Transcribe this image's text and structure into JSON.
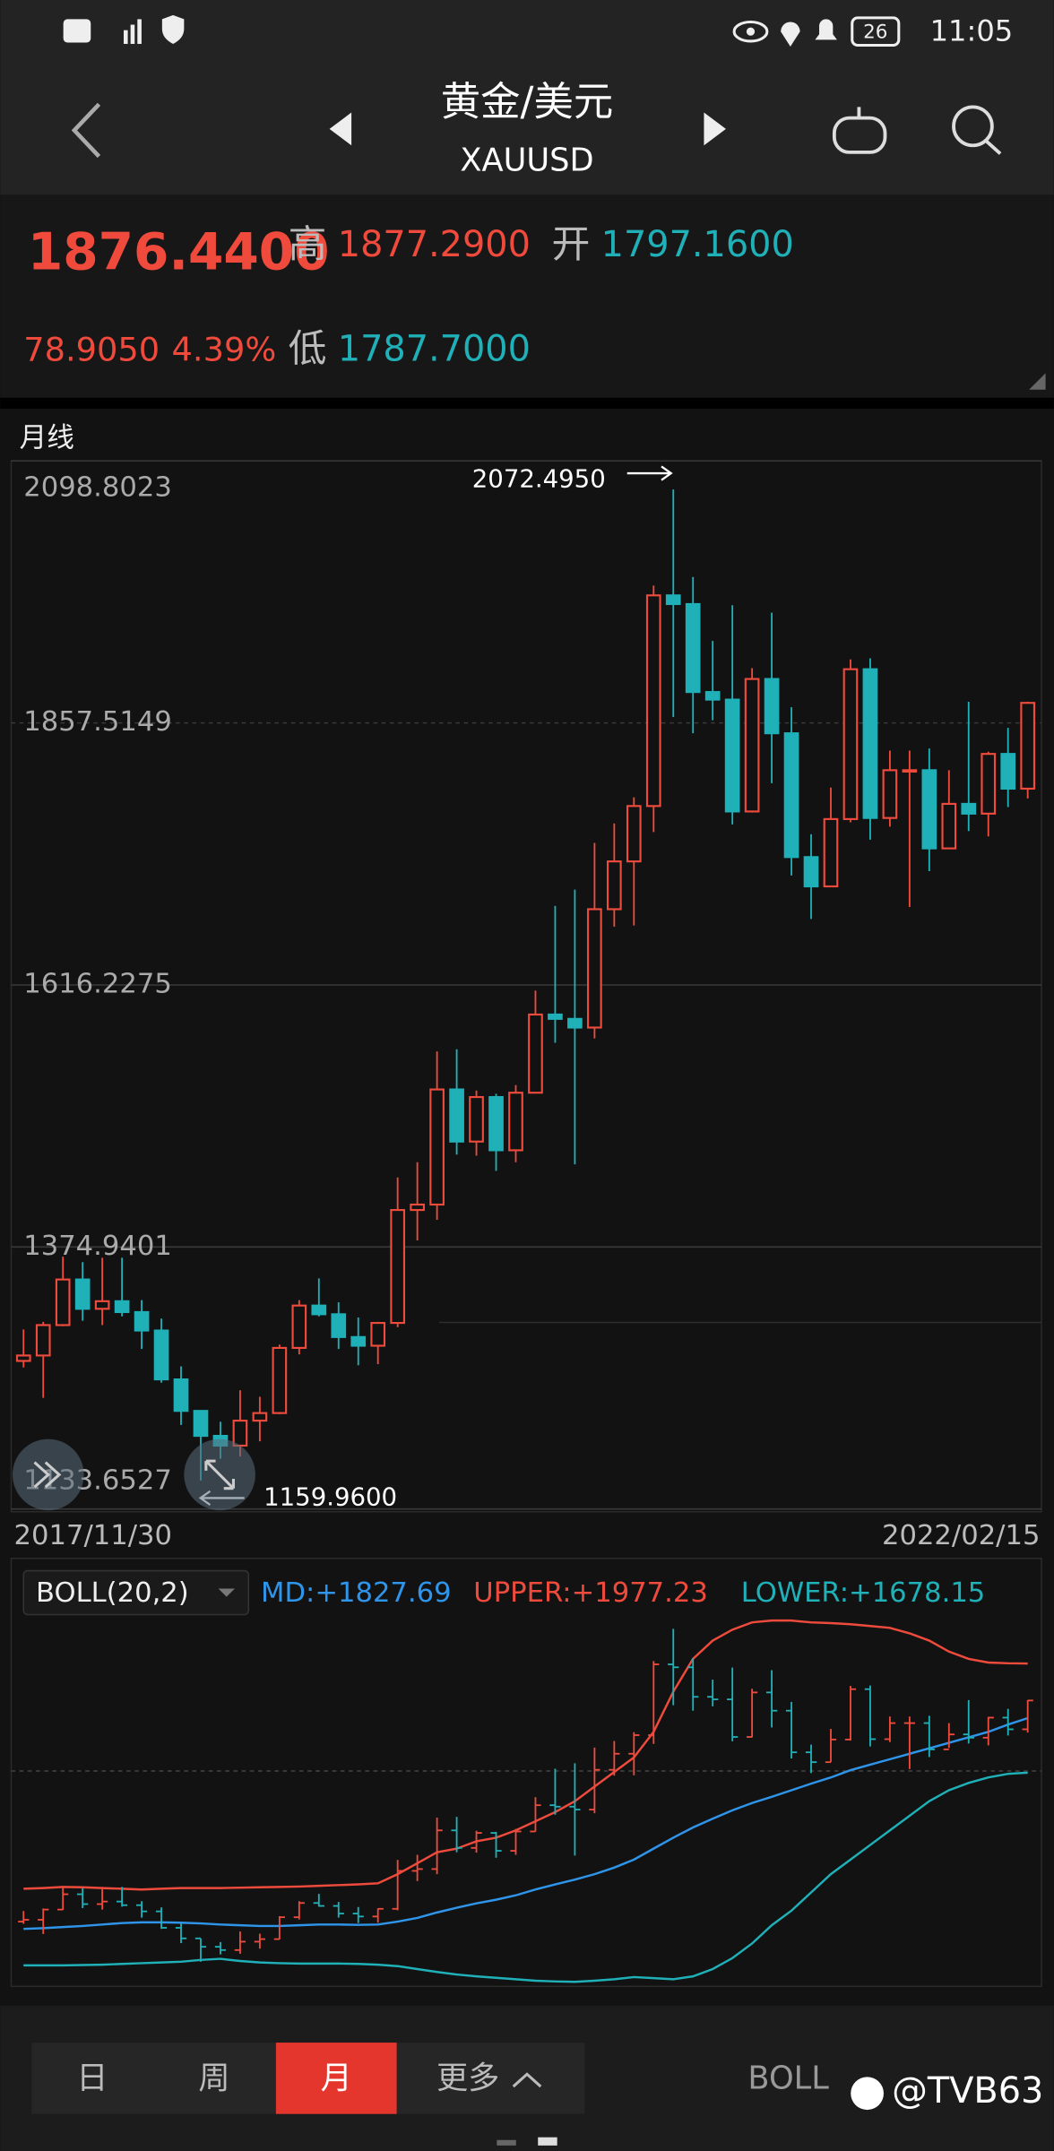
{
  "status_bar": {
    "battery": "26",
    "time": "11:05"
  },
  "header": {
    "title": "黄金/美元",
    "symbol": "XAUUSD"
  },
  "quote": {
    "price": "1876.4400",
    "high_label": "高",
    "high": "1877.2900",
    "open_label": "开",
    "open": "1797.1600",
    "change": "78.9050",
    "change_pct": "4.39%",
    "low_label": "低",
    "low": "1787.7000"
  },
  "chart_data": [
    {
      "type": "candlestick",
      "title": "月线",
      "categories": [
        "2017/11/30",
        null,
        null,
        null,
        null,
        null,
        null,
        null,
        null,
        null,
        null,
        null,
        null,
        null,
        null,
        null,
        null,
        null,
        null,
        null,
        null,
        null,
        null,
        null,
        null,
        null,
        null,
        null,
        null,
        null,
        null,
        null,
        null,
        null,
        null,
        null,
        null,
        null,
        null,
        null,
        null,
        null,
        null,
        null,
        null,
        null,
        null,
        null,
        null,
        null,
        null,
        "2022/02/15"
      ],
      "open": [
        1270,
        1275,
        1303,
        1345,
        1318,
        1325,
        1315,
        1298,
        1253,
        1224,
        1201,
        1192,
        1215,
        1222,
        1282,
        1321,
        1313,
        1292,
        1284,
        1305,
        1409,
        1414,
        1520,
        1472,
        1513,
        1464,
        1517,
        1589,
        1585,
        1577,
        1686,
        1730,
        1781,
        1975,
        1967,
        1886,
        1879,
        1776,
        1898,
        1848,
        1734,
        1707,
        1769,
        1907,
        1770,
        1814,
        1814,
        1742,
        1783,
        1774,
        1829,
        1797
      ],
      "high": [
        1299,
        1306,
        1366,
        1361,
        1365,
        1365,
        1326,
        1309,
        1265,
        1224,
        1214,
        1243,
        1237,
        1285,
        1326,
        1346,
        1324,
        1310,
        1306,
        1439,
        1453,
        1555,
        1557,
        1519,
        1516,
        1524,
        1611,
        1689,
        1704,
        1747,
        1765,
        1789,
        1984,
        2072.495,
        1992,
        1933,
        1966,
        1908,
        1959,
        1872,
        1755,
        1798,
        1916,
        1917,
        1832,
        1832,
        1834,
        1814,
        1877,
        1831,
        1853,
        1877
      ],
      "low": [
        1264,
        1236,
        1302,
        1307,
        1303,
        1311,
        1281,
        1250,
        1211,
        1159.96,
        1180,
        1182,
        1196,
        1221,
        1276,
        1311,
        1281,
        1266,
        1267,
        1301,
        1381,
        1400,
        1460,
        1459,
        1445,
        1453,
        1517,
        1563,
        1451,
        1567,
        1670,
        1671,
        1757,
        1863,
        1848,
        1860,
        1764,
        1775,
        1802,
        1717,
        1677,
        1707,
        1766,
        1750,
        1762,
        1688,
        1721,
        1746,
        1758,
        1753,
        1780,
        1788
      ],
      "close": [
        1275,
        1303,
        1345,
        1318,
        1325,
        1315,
        1298,
        1253,
        1224,
        1201,
        1192,
        1215,
        1222,
        1282,
        1321,
        1313,
        1292,
        1284,
        1305,
        1409,
        1414,
        1520,
        1472,
        1513,
        1464,
        1517,
        1589,
        1585,
        1577,
        1686,
        1730,
        1781,
        1975,
        1967,
        1886,
        1879,
        1776,
        1898,
        1848,
        1734,
        1707,
        1769,
        1907,
        1770,
        1814,
        1814,
        1742,
        1783,
        1774,
        1829,
        1797,
        1876
      ],
      "up_color": "#ef4b3d",
      "down_color": "#1fb0b8",
      "ylim": [
        1133.6527,
        2098.8023
      ],
      "yticks": [
        1133.6527,
        1374.9401,
        1616.2275,
        1857.5149,
        2098.8023
      ],
      "annotations": [
        "2072.4950",
        "1159.9600"
      ]
    },
    {
      "type": "line",
      "title": "BOLL(20,2)",
      "ylim": [
        1100,
        2100
      ],
      "series": [
        {
          "name": "MD:+1827.69",
          "color": "#2f95ea",
          "values": [
            1250,
            1252,
            1255,
            1258,
            1262,
            1266,
            1268,
            1268,
            1267,
            1265,
            1262,
            1260,
            1258,
            1258,
            1260,
            1262,
            1262,
            1261,
            1262,
            1270,
            1280,
            1295,
            1308,
            1320,
            1330,
            1342,
            1358,
            1372,
            1385,
            1400,
            1418,
            1440,
            1470,
            1500,
            1528,
            1552,
            1575,
            1595,
            1612,
            1630,
            1648,
            1665,
            1685,
            1700,
            1715,
            1730,
            1745,
            1760,
            1775,
            1790,
            1810,
            1827.69
          ]
        },
        {
          "name": "UPPER:+1977.23",
          "color": "#ef4b3d",
          "values": [
            1360,
            1362,
            1365,
            1364,
            1362,
            1360,
            1358,
            1360,
            1362,
            1362,
            1362,
            1363,
            1364,
            1365,
            1366,
            1368,
            1370,
            1372,
            1375,
            1400,
            1430,
            1460,
            1470,
            1490,
            1500,
            1520,
            1545,
            1570,
            1600,
            1640,
            1680,
            1720,
            1790,
            1900,
            1990,
            2040,
            2070,
            2090,
            2095,
            2095,
            2090,
            2088,
            2085,
            2080,
            2075,
            2060,
            2040,
            2010,
            1990,
            1980,
            1978,
            1977.23
          ]
        },
        {
          "name": "LOWER:+1678.15",
          "color": "#1fb0b8",
          "values": [
            1150,
            1150,
            1150,
            1151,
            1152,
            1154,
            1156,
            1158,
            1160,
            1165,
            1168,
            1162,
            1158,
            1156,
            1155,
            1155,
            1155,
            1154,
            1152,
            1148,
            1140,
            1132,
            1125,
            1120,
            1116,
            1112,
            1108,
            1106,
            1105,
            1108,
            1112,
            1118,
            1115,
            1112,
            1120,
            1140,
            1170,
            1210,
            1260,
            1300,
            1350,
            1400,
            1440,
            1480,
            1520,
            1560,
            1600,
            1630,
            1650,
            1665,
            1675,
            1678.15
          ]
        }
      ]
    }
  ],
  "toolbar": {
    "tabs": [
      "日",
      "周",
      "月",
      "更多"
    ],
    "indicator": "BOLL"
  },
  "watermark": "@TVB63"
}
